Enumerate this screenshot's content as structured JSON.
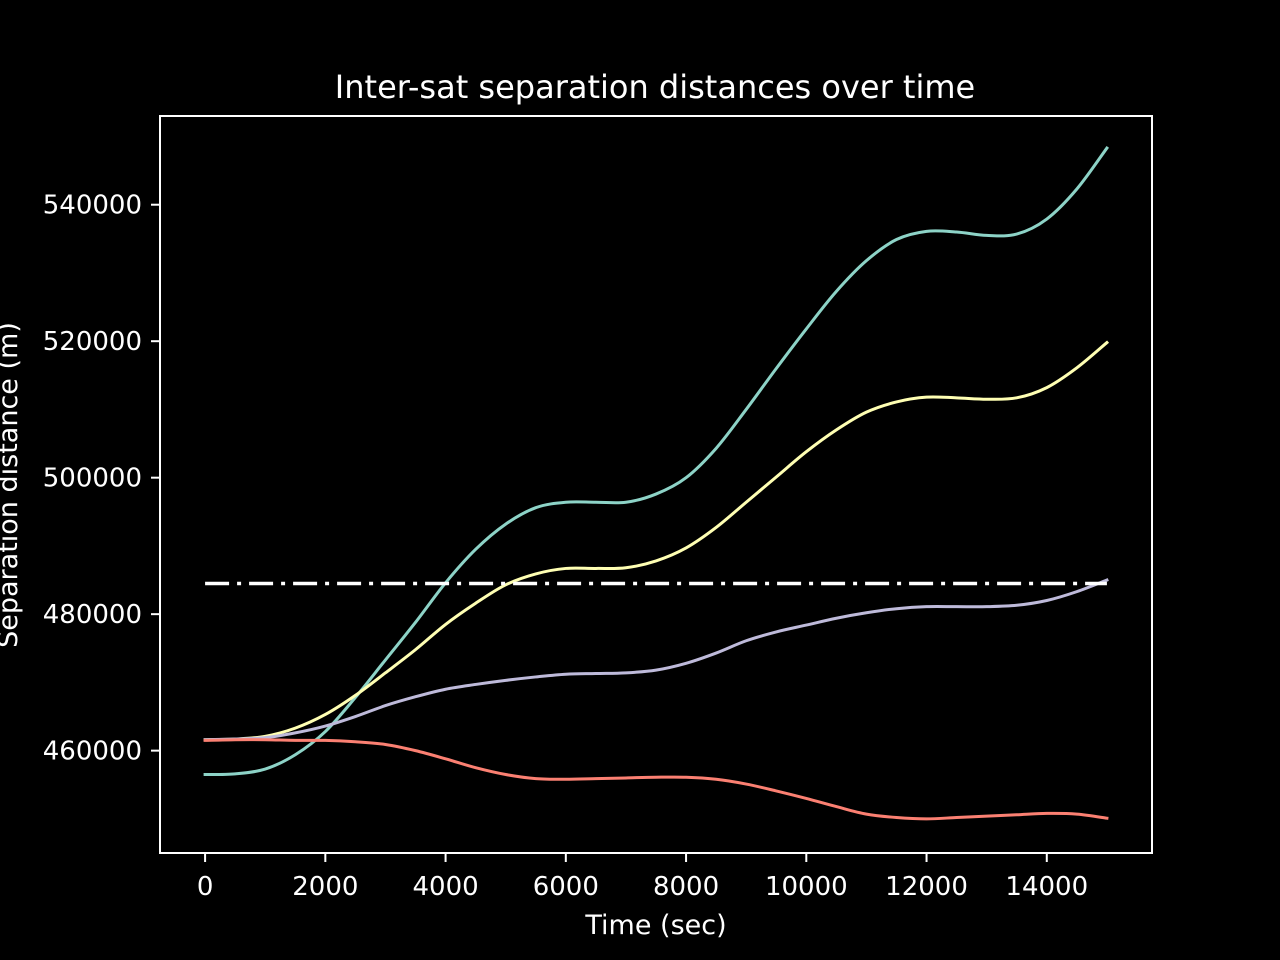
{
  "chart_data": {
    "type": "line",
    "title": "Inter-sat separation distances over time",
    "xlabel": "Time (sec)",
    "ylabel": "Separation distance (m)",
    "xlim": [
      -750,
      15750
    ],
    "ylim": [
      445000,
      553000
    ],
    "x_ticks": [
      0,
      2000,
      4000,
      6000,
      8000,
      10000,
      12000,
      14000
    ],
    "y_ticks": [
      460000,
      480000,
      500000,
      520000,
      540000
    ],
    "grid": false,
    "legend": "none",
    "x": [
      0,
      500,
      1000,
      1500,
      2000,
      2500,
      3000,
      3500,
      4000,
      4500,
      5000,
      5500,
      6000,
      6500,
      7000,
      7500,
      8000,
      8500,
      9000,
      9500,
      10000,
      10500,
      11000,
      11500,
      12000,
      12500,
      13000,
      13500,
      14000,
      14500,
      15000
    ],
    "series": [
      {
        "color": "#8dd3c7",
        "values": [
          456500,
          456600,
          457300,
          459400,
          462800,
          467800,
          473300,
          478800,
          484600,
          489500,
          493200,
          495600,
          496400,
          496400,
          496400,
          497600,
          500000,
          504300,
          510000,
          516000,
          521800,
          527300,
          531800,
          534900,
          536100,
          536000,
          535500,
          535700,
          537900,
          542300,
          548300
        ]
      },
      {
        "color": "#ffffb3",
        "values": [
          461600,
          461700,
          462100,
          463300,
          465300,
          468100,
          471400,
          474800,
          478500,
          481600,
          484300,
          485900,
          486700,
          486700,
          486800,
          487800,
          489700,
          492700,
          496400,
          500100,
          503800,
          507000,
          509600,
          511100,
          511800,
          511700,
          511500,
          511700,
          513200,
          516100,
          519800
        ]
      },
      {
        "color": "#bebada",
        "values": [
          461600,
          461700,
          461900,
          462600,
          463600,
          465000,
          466600,
          467900,
          469000,
          469700,
          470300,
          470800,
          471200,
          471300,
          471400,
          471800,
          472800,
          474300,
          476100,
          477400,
          478400,
          479400,
          480200,
          480800,
          481100,
          481100,
          481100,
          481300,
          482000,
          483300,
          485000
        ]
      },
      {
        "color": "#fb8072",
        "values": [
          461500,
          461600,
          461600,
          461500,
          461500,
          461300,
          460900,
          460000,
          458800,
          457500,
          456500,
          455900,
          455800,
          455900,
          456000,
          456100,
          456100,
          455800,
          455100,
          454100,
          453000,
          451800,
          450700,
          450200,
          450000,
          450200,
          450400,
          450600,
          450800,
          450700,
          450100
        ]
      }
    ],
    "reference_line": {
      "color": "#ffffff",
      "style": "dash-dot",
      "x": [
        0,
        15000
      ],
      "values": [
        484500,
        484500
      ]
    }
  }
}
